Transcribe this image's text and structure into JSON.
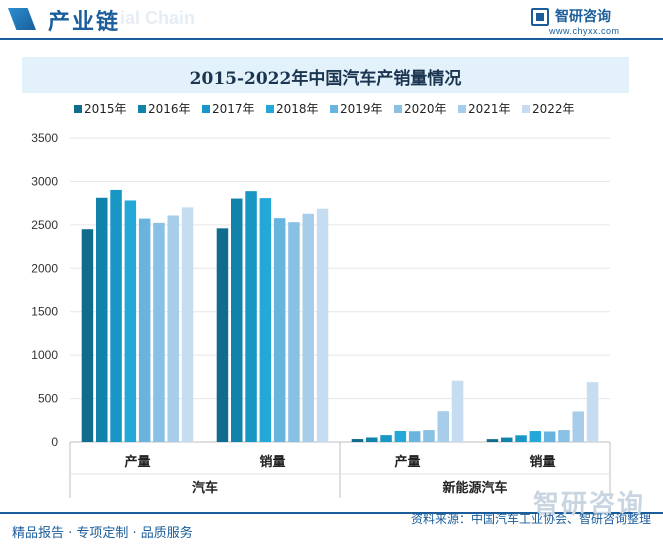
{
  "header": {
    "title": "产业链",
    "ghost_text": "ial Chain",
    "brand_name": "智研咨询",
    "brand_url": "www.chyxx.com"
  },
  "footer": {
    "left": "精品报告 · 专项定制 · 品质服务",
    "source": "资料来源：中国汽车工业协会、智研咨询整理",
    "watermark": "智研咨询"
  },
  "colors": {
    "accent": "#1a5d9a",
    "series": [
      "#0f6c8d",
      "#1183ab",
      "#1896c4",
      "#24a8d8",
      "#68b4df",
      "#89c0e6",
      "#a8cdea",
      "#c6ddf1"
    ]
  },
  "chart_data": {
    "type": "bar",
    "title": "2015-2022年中国汽车产销量情况",
    "categories": [
      "产量",
      "销量",
      "产量",
      "销量"
    ],
    "groups": [
      {
        "label": "汽车",
        "span": [
          0,
          1
        ]
      },
      {
        "label": "新能源汽车",
        "span": [
          2,
          3
        ]
      }
    ],
    "series": [
      {
        "name": "2015年",
        "values": [
          2450,
          2460,
          34,
          33
        ]
      },
      {
        "name": "2016年",
        "values": [
          2812,
          2803,
          52,
          51
        ]
      },
      {
        "name": "2017年",
        "values": [
          2902,
          2888,
          79,
          77
        ]
      },
      {
        "name": "2018年",
        "values": [
          2781,
          2808,
          127,
          126
        ]
      },
      {
        "name": "2019年",
        "values": [
          2572,
          2577,
          124,
          121
        ]
      },
      {
        "name": "2020年",
        "values": [
          2523,
          2531,
          137,
          137
        ]
      },
      {
        "name": "2021年",
        "values": [
          2608,
          2628,
          355,
          352
        ]
      },
      {
        "name": "2022年",
        "values": [
          2702,
          2686,
          706,
          689
        ]
      }
    ],
    "ylim": [
      0,
      3500
    ],
    "yticks": [
      0,
      500,
      1000,
      1500,
      2000,
      2500,
      3000,
      3500
    ],
    "grid": true,
    "legend": "top"
  }
}
